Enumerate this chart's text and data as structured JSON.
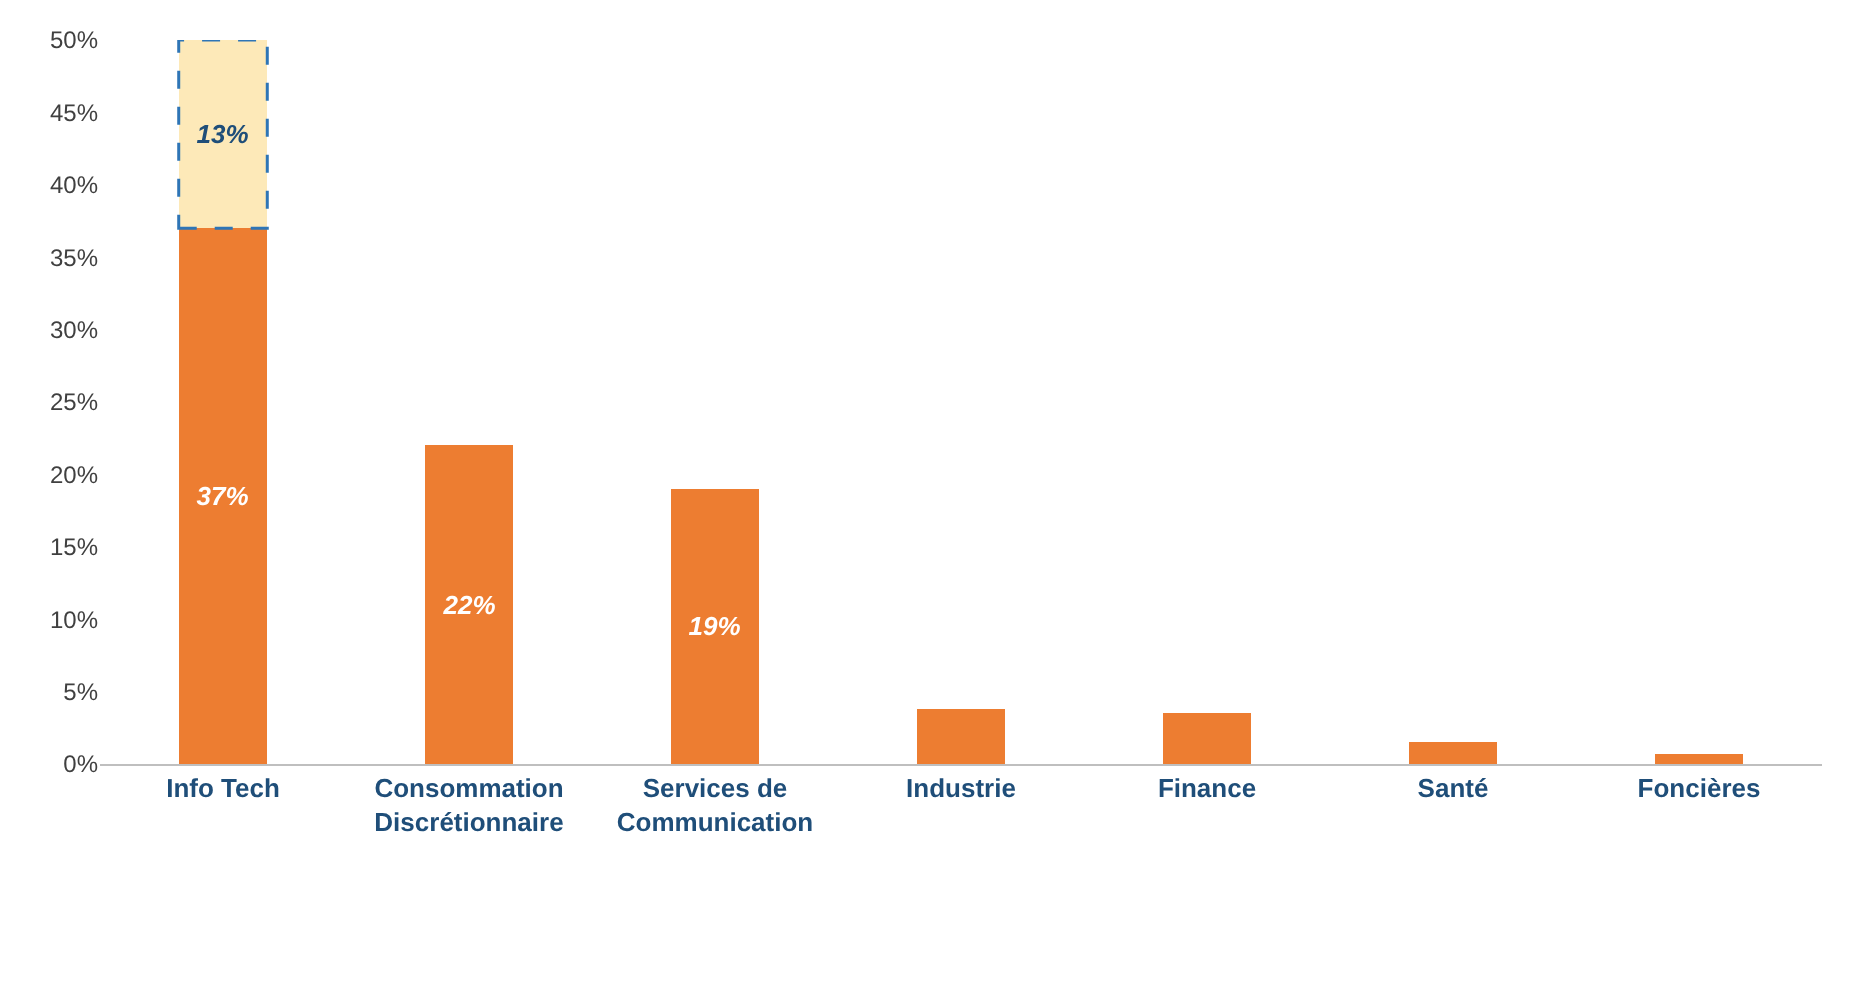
{
  "chart_data": {
    "type": "bar",
    "stacked": true,
    "categories": [
      "Info Tech",
      "Consommation Discrétionnaire",
      "Services de Communication",
      "Industrie",
      "Finance",
      "Santé",
      "Foncières"
    ],
    "series": [
      {
        "color": "#ed7d31",
        "values": [
          37,
          22,
          19,
          3.8,
          3.5,
          1.5,
          0.7
        ],
        "value_labels": [
          "37%",
          "22%",
          "19%",
          null,
          null,
          null,
          null
        ]
      },
      {
        "color": "#fde9b8",
        "line_style": "dashed",
        "values": [
          13,
          null,
          null,
          null,
          null,
          null,
          null
        ],
        "value_labels": [
          "13%",
          null,
          null,
          null,
          null,
          null,
          null
        ]
      }
    ],
    "ylim": [
      0,
      50
    ],
    "yticks": [
      {
        "value": 0,
        "label": "0%"
      },
      {
        "value": 5,
        "label": "5%"
      },
      {
        "value": 10,
        "label": "10%"
      },
      {
        "value": 15,
        "label": "15%"
      },
      {
        "value": 20,
        "label": "20%"
      },
      {
        "value": 25,
        "label": "25%"
      },
      {
        "value": 30,
        "label": "30%"
      },
      {
        "value": 35,
        "label": "35%"
      },
      {
        "value": 40,
        "label": "40%"
      },
      {
        "value": 45,
        "label": "45%"
      },
      {
        "value": 50,
        "label": "50%"
      }
    ]
  }
}
